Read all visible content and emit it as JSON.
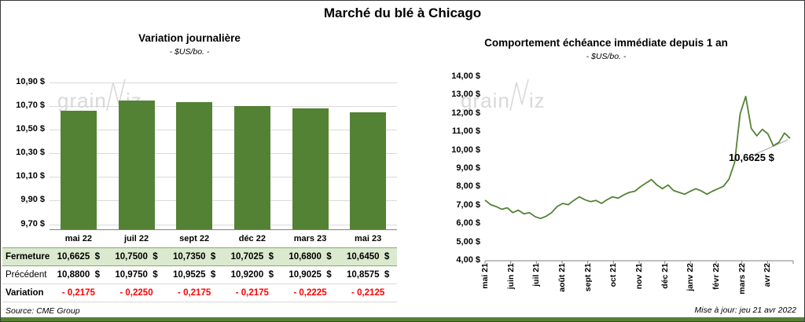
{
  "page": {
    "title": "Marché du blé à Chicago",
    "source": "Source: CME Group",
    "updated": "Mise à jour: jeu 21 avr 2022",
    "watermark_grain": "grain",
    "watermark_iz": "iz"
  },
  "colors": {
    "green": "#548235",
    "light_green_row": "#dbe9cf",
    "negative_red": "#ff0000",
    "watermark_gray": "#d9d9d9",
    "grid_gray": "#d9d9d9",
    "axis_gray": "#808080"
  },
  "chart_data": [
    {
      "type": "bar",
      "title": "Variation  journalière",
      "subtitle": "- $US/bo. -",
      "categories": [
        "mai 22",
        "juil 22",
        "sept 22",
        "déc 22",
        "mars 23",
        "mai 23"
      ],
      "values": [
        10.6625,
        10.75,
        10.735,
        10.7025,
        10.68,
        10.645
      ],
      "ylim": [
        9.65,
        10.9
      ],
      "grid": true,
      "yticks": [
        "9,70 $",
        "9,90 $",
        "10,10 $",
        "10,30 $",
        "10,50 $",
        "10,70 $",
        "10,90 $"
      ],
      "ytick_values": [
        9.7,
        9.9,
        10.1,
        10.3,
        10.5,
        10.7,
        10.9
      ]
    },
    {
      "type": "line",
      "title": "Comportement  échéance  immédiate  depuis  1 an",
      "subtitle": "- $US/bo. -",
      "x_labels": [
        "mai 21",
        "juin 21",
        "juil 21",
        "août 21",
        "sept 21",
        "oct 21",
        "nov 21",
        "déc 21",
        "janv 22",
        "févr 22",
        "mars 22",
        "avr 22"
      ],
      "values": [
        7.3,
        7.05,
        6.95,
        6.8,
        6.88,
        6.62,
        6.75,
        6.55,
        6.62,
        6.4,
        6.3,
        6.42,
        6.62,
        6.95,
        7.12,
        7.05,
        7.28,
        7.48,
        7.32,
        7.22,
        7.28,
        7.12,
        7.32,
        7.48,
        7.4,
        7.58,
        7.72,
        7.78,
        8.02,
        8.22,
        8.42,
        8.12,
        7.92,
        8.12,
        7.82,
        7.72,
        7.62,
        7.78,
        7.92,
        7.8,
        7.62,
        7.78,
        7.92,
        8.05,
        8.45,
        9.35,
        12.0,
        12.94,
        11.2,
        10.8,
        11.15,
        10.9,
        10.25,
        10.45,
        10.95,
        10.66
      ],
      "ylim": [
        4,
        14
      ],
      "grid": false,
      "yticks": [
        "14,00 $",
        "13,00 $",
        "12,00 $",
        "11,00 $",
        "10,00 $",
        "9,00 $",
        "8,00 $",
        "7,00 $",
        "6,00 $",
        "5,00 $",
        "4,00 $"
      ],
      "ytick_values": [
        14,
        13,
        12,
        11,
        10,
        9,
        8,
        7,
        6,
        5,
        4
      ],
      "annotation": "10,6625 $",
      "last_value": 10.6625
    }
  ],
  "table": {
    "rows": [
      {
        "key": "fermeture",
        "label": "Fermeture",
        "values": [
          "10,6625  $",
          "10,7500  $",
          "10,7350  $",
          "10,7025  $",
          "10,6800  $",
          "10,6450  $"
        ]
      },
      {
        "key": "precedent",
        "label": "Précédent",
        "values": [
          "10,8800  $",
          "10,9750  $",
          "10,9525  $",
          "10,9200  $",
          "10,9025  $",
          "10,8575  $"
        ]
      },
      {
        "key": "variation",
        "label": "Variation",
        "values": [
          "- 0,2175",
          "- 0,2250",
          "- 0,2175",
          "- 0,2175",
          "- 0,2225",
          "- 0,2125"
        ]
      }
    ]
  }
}
